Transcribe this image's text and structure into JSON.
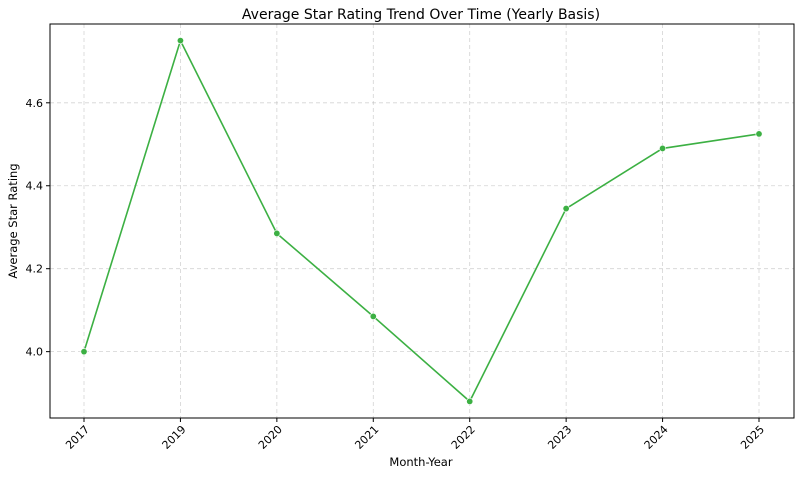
{
  "chart_data": {
    "type": "line",
    "title": "Average Star Rating Trend Over Time (Yearly Basis)",
    "xlabel": "Month-Year",
    "ylabel": "Average Star Rating",
    "categories": [
      "2017",
      "2019",
      "2020",
      "2021",
      "2022",
      "2023",
      "2024",
      "2025"
    ],
    "series": [
      {
        "values": [
          4.0,
          4.75,
          4.285,
          4.085,
          3.88,
          4.345,
          4.49,
          4.525
        ],
        "color": "#3cb043"
      }
    ],
    "ylim": [
      3.84,
      4.79
    ],
    "yticks": [
      "4.0",
      "4.2",
      "4.4",
      "4.6"
    ],
    "x_tick_rotation": 45,
    "grid": true,
    "legend": "none"
  }
}
